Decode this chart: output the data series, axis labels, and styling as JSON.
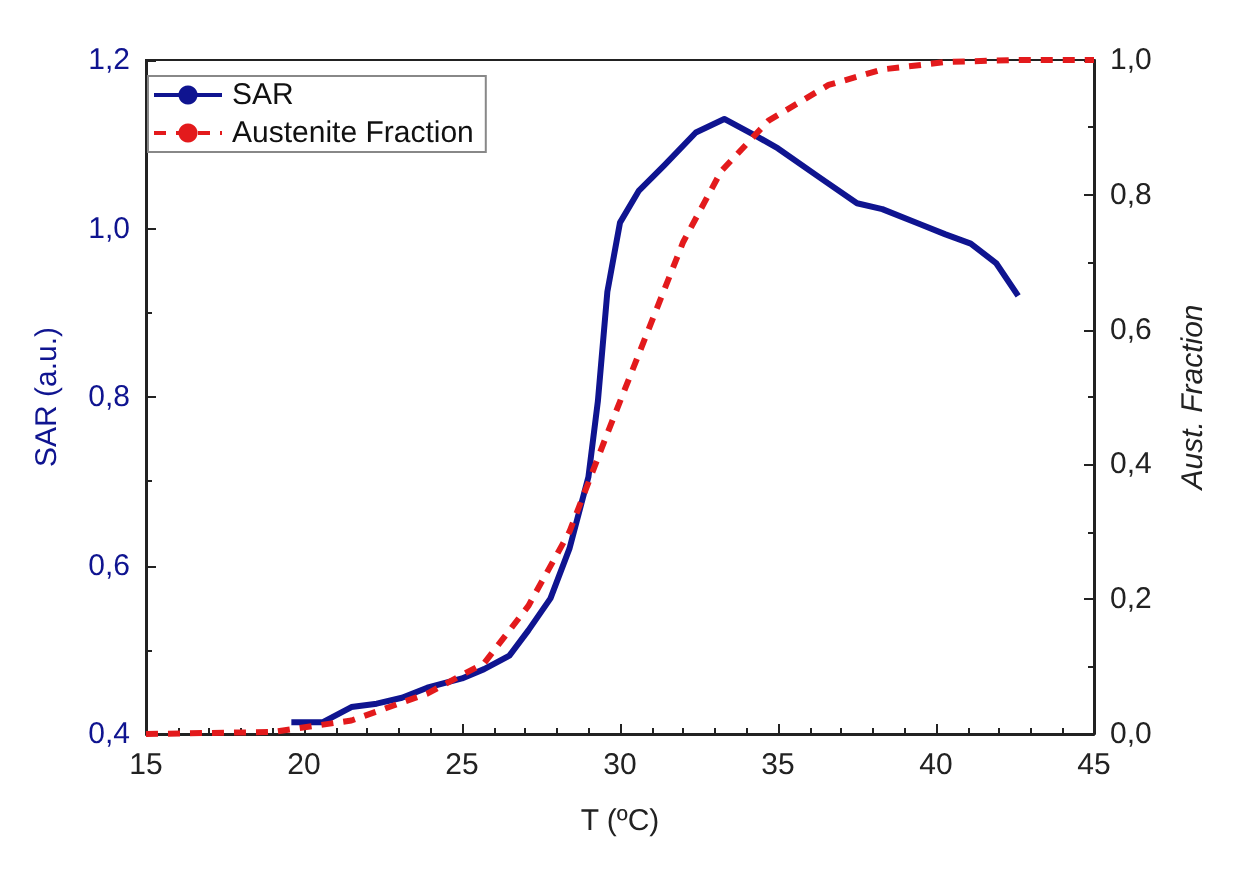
{
  "chart_data": {
    "type": "line",
    "xlabel": "T (ºC)",
    "ylabel": "SAR (a.u.)",
    "y2label": "Aust. Fraction",
    "xlim": [
      15,
      45
    ],
    "xticks": [
      15,
      20,
      25,
      30,
      35,
      40,
      45
    ],
    "ylim": [
      0.4,
      1.2
    ],
    "yticks": [
      {
        "value": 0.4,
        "label": "0,4"
      },
      {
        "value": 0.6,
        "label": "0,6"
      },
      {
        "value": 0.8,
        "label": "0,8"
      },
      {
        "value": 1.0,
        "label": "1,0"
      },
      {
        "value": 1.2,
        "label": "1,2"
      }
    ],
    "y2lim": [
      0,
      1
    ],
    "y2ticks": [
      {
        "value": 0,
        "label": "0,0"
      },
      {
        "value": 0.2,
        "label": "0,2"
      },
      {
        "value": 0.4,
        "label": "0,4"
      },
      {
        "value": 0.6,
        "label": "0,6"
      },
      {
        "value": 0.8,
        "label": "0,8"
      },
      {
        "value": 1.0,
        "label": "1,0"
      }
    ],
    "legend": "top left",
    "grid": false,
    "marker": "none",
    "series": [
      {
        "name": "SAR",
        "color": "#0f1490",
        "line_style": "solid",
        "x": [
          19.6,
          20.6,
          21.5,
          22.3,
          23.1,
          23.9,
          25.0,
          25.7,
          26.5,
          27.1,
          27.8,
          28.4,
          29.0,
          29.3,
          29.6,
          30.0,
          30.6,
          31.4,
          32.4,
          33.3,
          34.3,
          35.0,
          36.3,
          37.5,
          38.3,
          39.5,
          40.3,
          41.1,
          41.9,
          42.6
        ],
        "values": [
          0.414,
          0.414,
          0.432,
          0.436,
          0.443,
          0.455,
          0.466,
          0.477,
          0.493,
          0.523,
          0.561,
          0.62,
          0.705,
          0.795,
          0.925,
          1.007,
          1.045,
          1.075,
          1.114,
          1.13,
          1.11,
          1.095,
          1.061,
          1.03,
          1.023,
          1.005,
          0.993,
          0.982,
          0.959,
          0.92
        ]
      },
      {
        "name": "Austenite Fraction",
        "color": "#e31a1c",
        "line_style": "dashed",
        "axis": "y2",
        "x": [
          15,
          19,
          21.5,
          23.9,
          25.7,
          27.1,
          28.4,
          29.6,
          30.8,
          32.0,
          33.2,
          34.7,
          36.6,
          38.3,
          40.3,
          42.5,
          45
        ],
        "values": [
          0,
          0.003,
          0.02,
          0.06,
          0.105,
          0.19,
          0.3,
          0.446,
          0.588,
          0.73,
          0.835,
          0.91,
          0.963,
          0.986,
          0.997,
          1.0,
          1.0
        ]
      }
    ]
  }
}
